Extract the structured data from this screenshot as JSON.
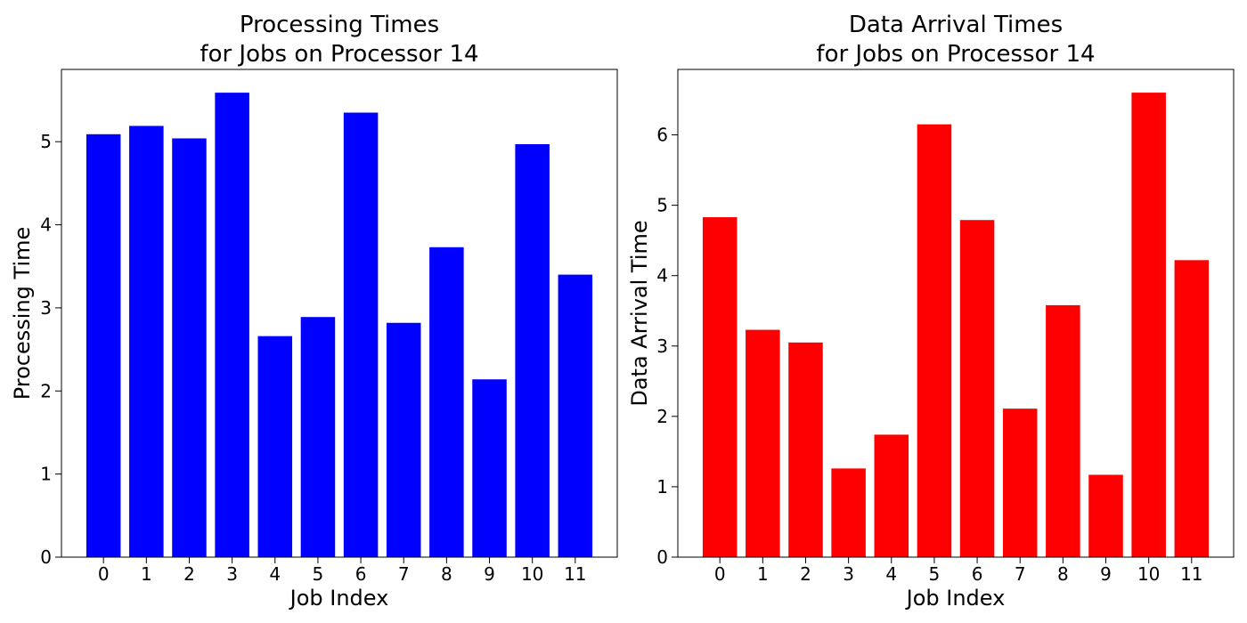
{
  "chart_data": [
    {
      "type": "bar",
      "title": [
        "Processing Times",
        "for Jobs on Processor 14"
      ],
      "xlabel": "Job Index",
      "ylabel": "Processing Time",
      "categories": [
        "0",
        "1",
        "2",
        "3",
        "4",
        "5",
        "6",
        "7",
        "8",
        "9",
        "10",
        "11"
      ],
      "values": [
        5.09,
        5.19,
        5.04,
        5.59,
        2.66,
        2.89,
        5.35,
        2.82,
        3.73,
        2.14,
        4.97,
        3.4
      ],
      "ylim": [
        0,
        5.87
      ],
      "yticks": [
        0,
        1,
        2,
        3,
        4,
        5
      ],
      "color": "#0000ff",
      "grid": false,
      "legend": false
    },
    {
      "type": "bar",
      "title": [
        "Data Arrival Times",
        "for Jobs on Processor 14"
      ],
      "xlabel": "Job Index",
      "ylabel": "Data Arrival Time",
      "categories": [
        "0",
        "1",
        "2",
        "3",
        "4",
        "5",
        "6",
        "7",
        "8",
        "9",
        "10",
        "11"
      ],
      "values": [
        4.83,
        3.23,
        3.05,
        1.26,
        1.74,
        6.15,
        4.79,
        2.11,
        3.58,
        1.17,
        6.6,
        4.22
      ],
      "ylim": [
        0,
        6.93
      ],
      "yticks": [
        0,
        1,
        2,
        3,
        4,
        5,
        6
      ],
      "color": "#ff0000",
      "grid": false,
      "legend": false
    }
  ]
}
